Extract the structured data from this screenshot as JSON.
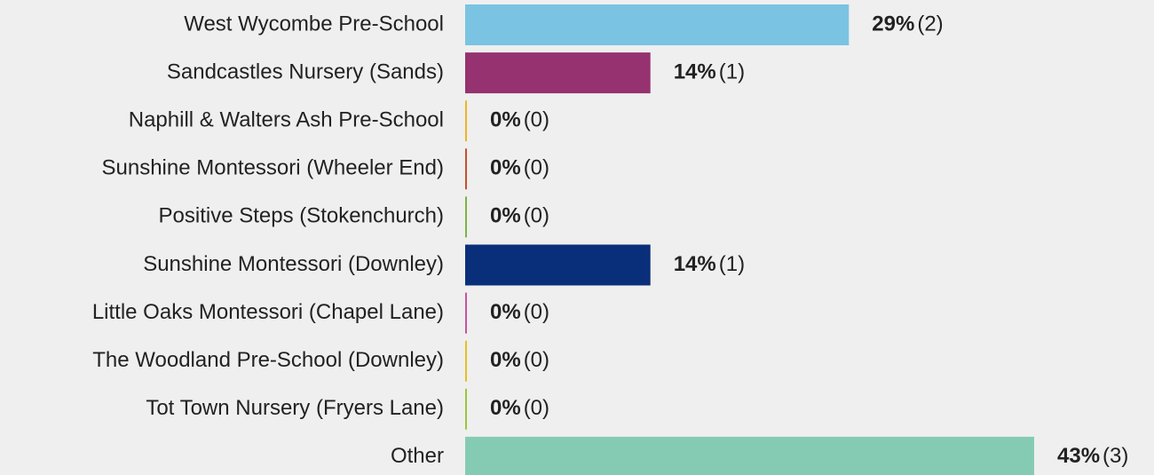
{
  "chart_data": {
    "type": "bar",
    "orientation": "horizontal",
    "categories": [
      "West Wycombe Pre-School",
      "Sandcastles Nursery (Sands)",
      "Naphill & Walters Ash Pre-School",
      "Sunshine Montessori (Wheeler End)",
      "Positive Steps (Stokenchurch)",
      "Sunshine Montessori (Downley)",
      "Little Oaks Montessori (Chapel Lane)",
      "The Woodland Pre-School (Downley)",
      "Tot Town Nursery (Fryers Lane)",
      "Other"
    ],
    "values": [
      29,
      14,
      0,
      0,
      0,
      14,
      0,
      0,
      0,
      43
    ],
    "value_labels": [
      "29%",
      "14%",
      "0%",
      "0%",
      "0%",
      "14%",
      "0%",
      "0%",
      "0%",
      "43%"
    ],
    "counts": [
      2,
      1,
      0,
      0,
      0,
      1,
      0,
      0,
      0,
      3
    ],
    "count_labels": [
      "(2)",
      "(1)",
      "(0)",
      "(0)",
      "(0)",
      "(1)",
      "(0)",
      "(0)",
      "(0)",
      "(3)"
    ],
    "colors": [
      "#7bc3e2",
      "#963270",
      "#f0b323",
      "#c8502d",
      "#7bb342",
      "#0a2f7a",
      "#c9539d",
      "#e5c01f",
      "#9bc53d",
      "#85cbb3"
    ]
  }
}
